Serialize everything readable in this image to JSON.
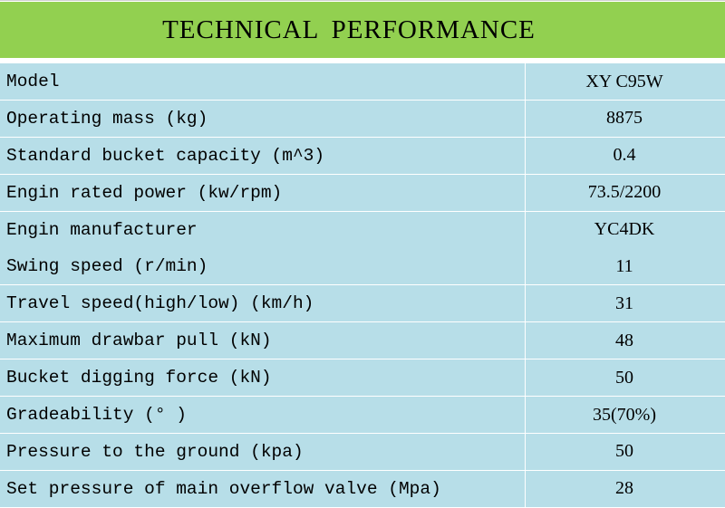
{
  "header": {
    "title": "TECHNICAL PERFORMANCE"
  },
  "colors": {
    "header_bg": "#92d050",
    "row_bg": "#b7dee8"
  },
  "table": {
    "rows": [
      {
        "label": "Model",
        "value": "XY C95W"
      },
      {
        "label": "Operating mass (kg)",
        "value": "8875"
      },
      {
        "label": "Standard bucket capacity (m^3)",
        "value": "0.4"
      },
      {
        "label": "Engin rated power (kw/rpm)",
        "value": "73.5/2200"
      },
      {
        "label": "Engin manufacturer",
        "value": "YC4DK"
      },
      {
        "label": "Swing speed (r/min)",
        "value": "11"
      },
      {
        "label": "Travel speed(high/low) (km/h)",
        "value": "31"
      },
      {
        "label": "Maximum drawbar pull (kN)",
        "value": "48"
      },
      {
        "label": "Bucket digging force (kN)",
        "value": "50"
      },
      {
        "label": "Gradeability (° )",
        "value": "35(70%)"
      },
      {
        "label": "Pressure to the ground (kpa)",
        "value": "50"
      },
      {
        "label": "Set pressure of main overflow valve (Mpa)",
        "value": "28"
      }
    ]
  }
}
